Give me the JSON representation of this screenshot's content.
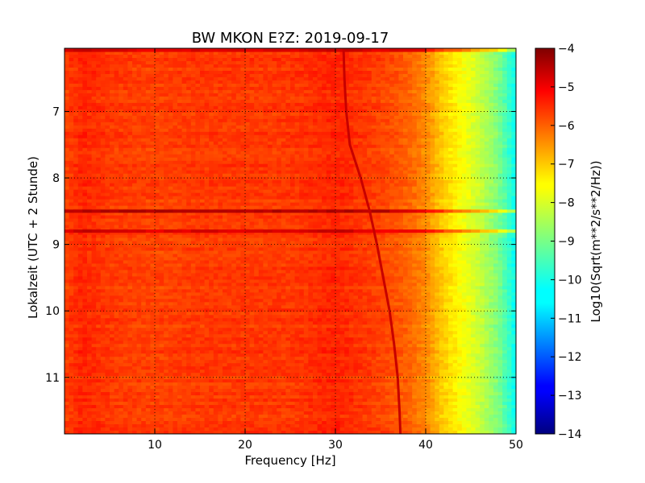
{
  "chart_data": {
    "type": "heatmap",
    "title": "BW MKON E?Z: 2019-09-17",
    "xlabel": "Frequency [Hz]",
    "ylabel": "Lokalzeit (UTC + 2 Stunde)",
    "colorbar_label": "Log10(Sqrt(m**2/s**2/Hz))",
    "colormap": "jet",
    "xlim": [
      0,
      50
    ],
    "ylim": [
      11.85,
      6.05
    ],
    "x_ticks": [
      10,
      20,
      30,
      40,
      50
    ],
    "y_ticks": [
      7,
      8,
      9,
      10,
      11
    ],
    "clim": [
      -14,
      -4
    ],
    "colorbar_ticks": [
      -4,
      -5,
      -6,
      -7,
      -8,
      -9,
      -10,
      -11,
      -12,
      -13,
      -14
    ],
    "grid": true,
    "profile": {
      "freq_hz": [
        0,
        2,
        5,
        10,
        15,
        20,
        25,
        30,
        35,
        38,
        40,
        42,
        44,
        46,
        48,
        50
      ],
      "log_amp": [
        -5.9,
        -5.6,
        -5.8,
        -5.9,
        -5.8,
        -5.8,
        -5.8,
        -5.6,
        -5.9,
        -6.2,
        -6.6,
        -7.3,
        -7.8,
        -8.3,
        -9.0,
        -10.2
      ]
    },
    "strong_bands": [
      {
        "time": 6.08,
        "log_amp": -5.0
      },
      {
        "time": 8.5,
        "log_amp": -4.5
      },
      {
        "time": 8.8,
        "log_amp": -5.2
      }
    ],
    "drifting_line": {
      "time": [
        6.05,
        6.5,
        7.0,
        7.5,
        8.0,
        8.5,
        9.0,
        9.5,
        10.0,
        10.5,
        11.0,
        11.5,
        11.85
      ],
      "freq_hz": [
        30.9,
        31.0,
        31.2,
        31.6,
        32.8,
        33.8,
        34.6,
        35.3,
        36.0,
        36.5,
        36.9,
        37.1,
        37.2
      ]
    }
  }
}
